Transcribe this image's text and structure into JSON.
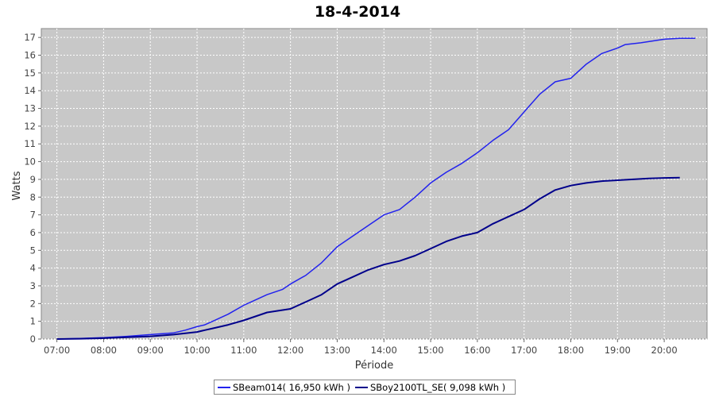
{
  "chart_data": {
    "type": "line",
    "title": "18-4-2014",
    "xlabel": "Période",
    "ylabel": "Watts",
    "x_tick_labels": [
      "07:00",
      "08:00",
      "09:00",
      "10:00",
      "11:00",
      "12:00",
      "13:00",
      "14:00",
      "15:00",
      "16:00",
      "17:00",
      "18:00",
      "19:00",
      "20:00"
    ],
    "x_ticks": [
      "07:00",
      "08:00",
      "09:00",
      "10:00",
      "11:00",
      "12:00",
      "13:00",
      "14:00",
      "15:00",
      "16:00",
      "17:00",
      "18:00",
      "19:00",
      "20:00"
    ],
    "xlim": [
      "06:40",
      "20:55"
    ],
    "ylim": [
      0,
      17.5
    ],
    "y_ticks": [
      0,
      1,
      2,
      3,
      4,
      5,
      6,
      7,
      8,
      9,
      10,
      11,
      12,
      13,
      14,
      15,
      16,
      17
    ],
    "grid": true,
    "legend_position": "bottom",
    "background_color": "#c8c8c8",
    "series": [
      {
        "name": "SBeam014( 16,950 kWh )",
        "color": "#2222ee",
        "x": [
          "07:00",
          "07:30",
          "08:00",
          "08:30",
          "09:00",
          "09:30",
          "09:45",
          "10:00",
          "10:10",
          "10:20",
          "10:40",
          "11:00",
          "11:30",
          "11:50",
          "12:00",
          "12:20",
          "12:40",
          "13:00",
          "13:20",
          "13:40",
          "14:00",
          "14:20",
          "14:40",
          "15:00",
          "15:20",
          "15:40",
          "16:00",
          "16:20",
          "16:40",
          "17:00",
          "17:20",
          "17:40",
          "18:00",
          "18:20",
          "18:40",
          "19:00",
          "19:10",
          "19:30",
          "20:00",
          "20:20",
          "20:40"
        ],
        "y": [
          0.0,
          0.03,
          0.08,
          0.15,
          0.25,
          0.35,
          0.5,
          0.7,
          0.8,
          1.0,
          1.4,
          1.9,
          2.5,
          2.8,
          3.1,
          3.6,
          4.3,
          5.2,
          5.8,
          6.4,
          7.0,
          7.3,
          8.0,
          8.8,
          9.4,
          9.9,
          10.5,
          11.2,
          11.8,
          12.8,
          13.8,
          14.5,
          14.7,
          15.5,
          16.1,
          16.4,
          16.6,
          16.7,
          16.9,
          16.95,
          16.95
        ]
      },
      {
        "name": "SBoy2100TL_SE( 9,098 kWh )",
        "color": "#00008b",
        "x": [
          "07:00",
          "07:30",
          "08:00",
          "08:30",
          "09:00",
          "09:30",
          "10:00",
          "10:10",
          "10:20",
          "10:40",
          "11:00",
          "11:30",
          "12:00",
          "12:20",
          "12:40",
          "13:00",
          "13:20",
          "13:40",
          "14:00",
          "14:20",
          "14:40",
          "15:00",
          "15:20",
          "15:40",
          "16:00",
          "16:20",
          "16:40",
          "17:00",
          "17:20",
          "17:40",
          "18:00",
          "18:20",
          "18:40",
          "19:00",
          "19:20",
          "19:40",
          "20:00",
          "20:20"
        ],
        "y": [
          0.0,
          0.02,
          0.05,
          0.1,
          0.15,
          0.25,
          0.4,
          0.5,
          0.6,
          0.8,
          1.05,
          1.5,
          1.7,
          2.1,
          2.5,
          3.1,
          3.5,
          3.9,
          4.2,
          4.4,
          4.7,
          5.1,
          5.5,
          5.8,
          6.0,
          6.5,
          6.9,
          7.3,
          7.9,
          8.4,
          8.65,
          8.8,
          8.9,
          8.95,
          9.0,
          9.05,
          9.08,
          9.098
        ]
      }
    ]
  }
}
